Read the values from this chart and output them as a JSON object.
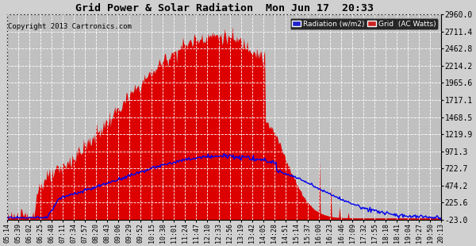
{
  "title": "Grid Power & Solar Radiation  Mon Jun 17  20:33",
  "copyright": "Copyright 2013 Cartronics.com",
  "yticks": [
    2960.0,
    2711.4,
    2462.8,
    2214.2,
    1965.6,
    1717.1,
    1468.5,
    1219.9,
    971.3,
    722.7,
    474.2,
    225.6,
    -23.0
  ],
  "ymin": -23.0,
  "ymax": 2960.0,
  "bg_color": "#d0d0d0",
  "plot_bg_color": "#c0c0c0",
  "grid_color": "white",
  "solar_fill_color": "#dd0000",
  "blue_line_color": "#0000ee",
  "legend_radiation_bg": "#2020cc",
  "legend_grid_bg": "#cc2020",
  "xtick_labels": [
    "05:14",
    "05:39",
    "06:02",
    "06:25",
    "06:48",
    "07:11",
    "07:34",
    "07:57",
    "08:20",
    "08:43",
    "09:06",
    "09:29",
    "09:52",
    "10:15",
    "10:38",
    "11:01",
    "11:24",
    "11:47",
    "12:10",
    "12:33",
    "12:56",
    "13:19",
    "13:42",
    "14:05",
    "14:28",
    "14:51",
    "15:14",
    "15:37",
    "16:00",
    "16:23",
    "16:46",
    "17:09",
    "17:32",
    "17:55",
    "18:18",
    "18:41",
    "19:04",
    "19:27",
    "19:50",
    "20:13"
  ]
}
